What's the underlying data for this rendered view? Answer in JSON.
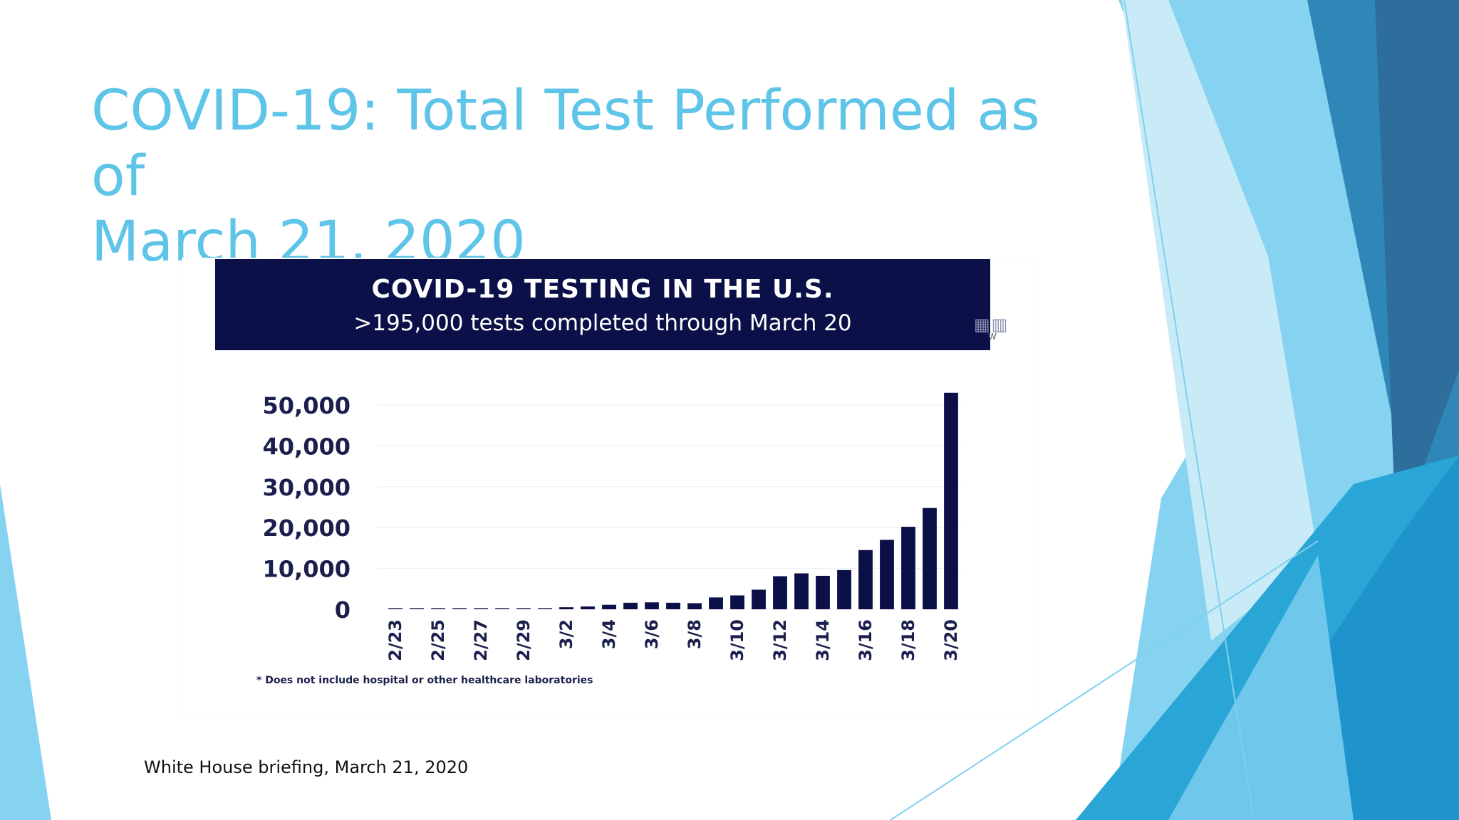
{
  "slide": {
    "title_line1": "COVID-19: Total Test Performed as of",
    "title_line2": "March 21, 2020",
    "source": "White House briefing, March 21, 2020"
  },
  "chart_data": {
    "type": "bar",
    "title": "COVID-19 TESTING IN THE U.S.",
    "subtitle": ">195,000 tests completed through March 20",
    "footnote": "* Does not include hospital or other healthcare laboratories",
    "ylim": [
      0,
      50000
    ],
    "yticks": [
      0,
      10000,
      20000,
      30000,
      40000,
      50000
    ],
    "ytick_labels": [
      "0",
      "10,000",
      "20,000",
      "30,000",
      "40,000",
      "50,000"
    ],
    "categories": [
      "2/23",
      "2/24",
      "2/25",
      "2/26",
      "2/27",
      "2/28",
      "2/29",
      "3/1",
      "3/2",
      "3/3",
      "3/4",
      "3/5",
      "3/6",
      "3/7",
      "3/8",
      "3/9",
      "3/10",
      "3/11",
      "3/12",
      "3/13",
      "3/14",
      "3/15",
      "3/16",
      "3/17",
      "3/18",
      "3/19",
      "3/20"
    ],
    "xtick_labels": [
      "2/23",
      "2/25",
      "2/27",
      "2/29",
      "3/2",
      "3/4",
      "3/6",
      "3/8",
      "3/10",
      "3/12",
      "3/14",
      "3/16",
      "3/18",
      "3/20"
    ],
    "values": [
      50,
      60,
      70,
      90,
      110,
      130,
      150,
      180,
      500,
      700,
      1100,
      1600,
      1700,
      1600,
      1500,
      2900,
      3400,
      4800,
      8100,
      8800,
      8200,
      9600,
      14500,
      17000,
      20200,
      24800,
      53000
    ],
    "bar_color": "#0b1048",
    "grid": true
  },
  "colors": {
    "title": "#5ec4e8",
    "banner": "#0b1048"
  },
  "logo": {
    "caption": "W"
  }
}
